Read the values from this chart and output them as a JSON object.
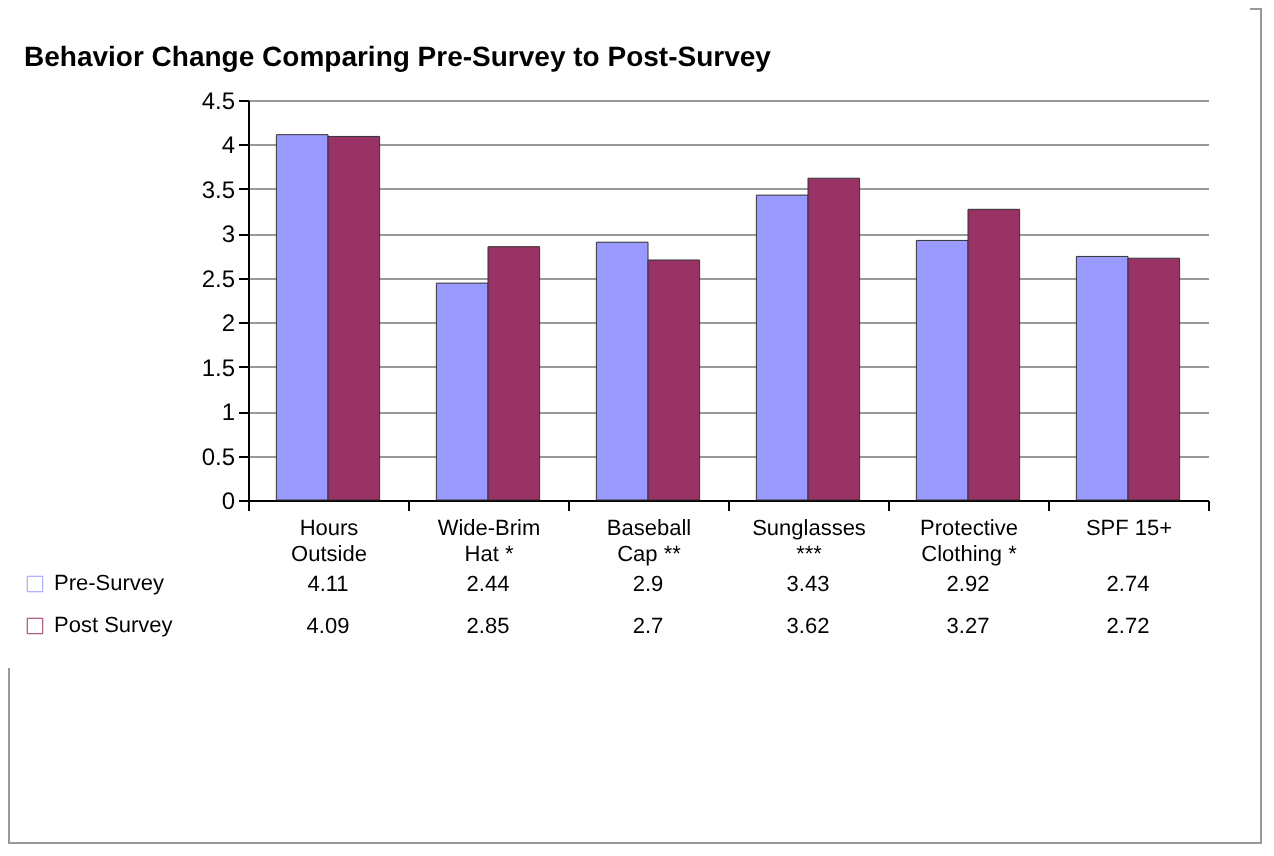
{
  "chart_data": {
    "type": "bar",
    "title": "Behavior Change Comparing Pre-Survey to Post-Survey",
    "categories": [
      "Hours Outside",
      "Wide-Brim Hat *",
      "Baseball Cap **",
      "Sunglasses ***",
      "Protective Clothing *",
      "SPF 15+"
    ],
    "series": [
      {
        "name": "Pre-Survey",
        "color": "#9999ff",
        "values": [
          4.11,
          2.44,
          2.9,
          3.43,
          2.92,
          2.74
        ]
      },
      {
        "name": "Post Survey",
        "color": "#993366",
        "values": [
          4.09,
          2.85,
          2.7,
          3.62,
          3.27,
          2.72
        ]
      }
    ],
    "ylim": [
      0,
      4.5
    ],
    "yticks": [
      0,
      0.5,
      1,
      1.5,
      2,
      2.5,
      3,
      3.5,
      4,
      4.5
    ],
    "grid": "y",
    "legend": "bottom left",
    "data_labels": true
  }
}
